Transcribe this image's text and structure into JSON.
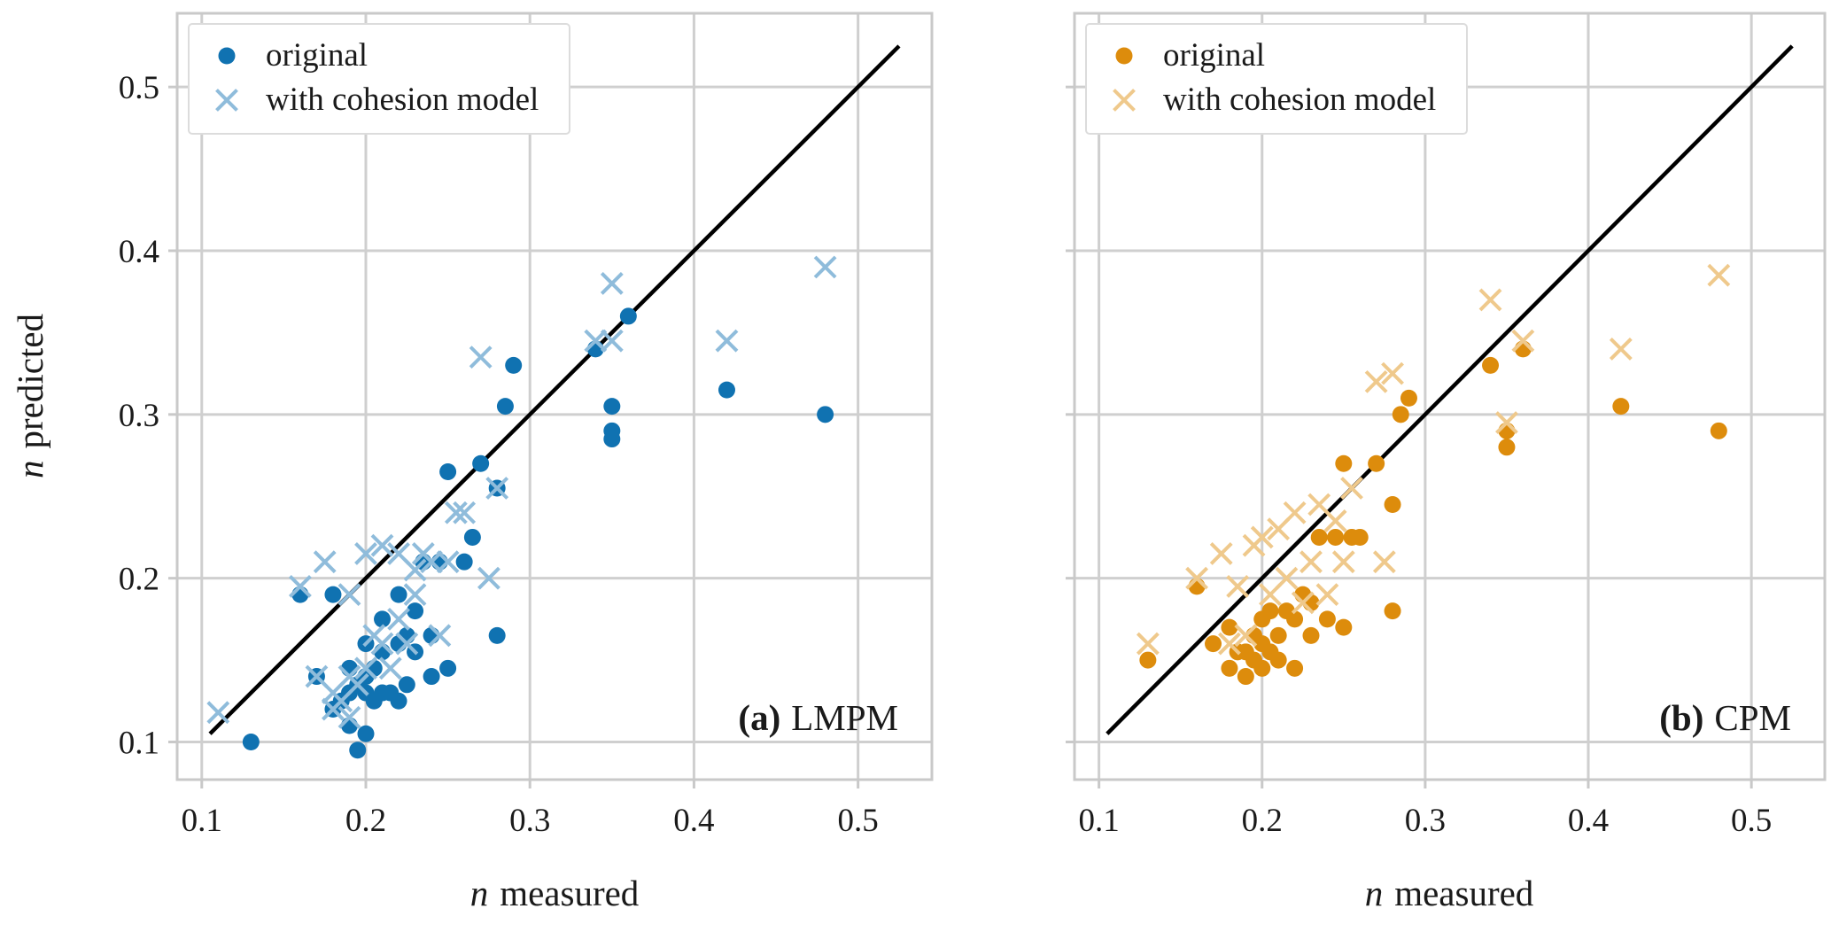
{
  "figure": {
    "background": "#ffffff",
    "text_color": "#1a1a1a",
    "grid_color": "#cfcfcf",
    "identity_line_color": "#000000"
  },
  "chart_data": [
    {
      "type": "scatter",
      "panel": "a",
      "panel_label": {
        "bold": "(a)",
        "name": "LMPM"
      },
      "xlabel": {
        "var": "n",
        "word": "measured"
      },
      "ylabel": {
        "var": "n",
        "word": "predicted"
      },
      "xlim": [
        0.085,
        0.545
      ],
      "ylim": [
        0.077,
        0.545
      ],
      "xticks": [
        0.1,
        0.2,
        0.3,
        0.4,
        0.5
      ],
      "yticks": [
        0.1,
        0.2,
        0.3,
        0.4,
        0.5
      ],
      "grid": true,
      "legend_position": "upper left",
      "identity_line": {
        "start": 0.105,
        "end": 0.525
      },
      "series": [
        {
          "name": "original",
          "marker": "circle",
          "color": "#1072b1",
          "points": [
            [
              0.13,
              0.1
            ],
            [
              0.16,
              0.19
            ],
            [
              0.17,
              0.14
            ],
            [
              0.18,
              0.12
            ],
            [
              0.18,
              0.19
            ],
            [
              0.185,
              0.125
            ],
            [
              0.19,
              0.11
            ],
            [
              0.19,
              0.13
            ],
            [
              0.19,
              0.145
            ],
            [
              0.195,
              0.095
            ],
            [
              0.195,
              0.135
            ],
            [
              0.2,
              0.105
            ],
            [
              0.2,
              0.13
            ],
            [
              0.2,
              0.14
            ],
            [
              0.2,
              0.16
            ],
            [
              0.205,
              0.125
            ],
            [
              0.205,
              0.145
            ],
            [
              0.21,
              0.13
            ],
            [
              0.21,
              0.155
            ],
            [
              0.21,
              0.175
            ],
            [
              0.215,
              0.13
            ],
            [
              0.22,
              0.125
            ],
            [
              0.22,
              0.16
            ],
            [
              0.22,
              0.19
            ],
            [
              0.225,
              0.135
            ],
            [
              0.225,
              0.165
            ],
            [
              0.23,
              0.155
            ],
            [
              0.23,
              0.18
            ],
            [
              0.235,
              0.21
            ],
            [
              0.24,
              0.14
            ],
            [
              0.24,
              0.165
            ],
            [
              0.245,
              0.21
            ],
            [
              0.25,
              0.145
            ],
            [
              0.25,
              0.265
            ],
            [
              0.26,
              0.21
            ],
            [
              0.265,
              0.225
            ],
            [
              0.27,
              0.27
            ],
            [
              0.28,
              0.165
            ],
            [
              0.28,
              0.255
            ],
            [
              0.285,
              0.305
            ],
            [
              0.29,
              0.33
            ],
            [
              0.34,
              0.34
            ],
            [
              0.35,
              0.285
            ],
            [
              0.35,
              0.29
            ],
            [
              0.35,
              0.305
            ],
            [
              0.36,
              0.36
            ],
            [
              0.42,
              0.315
            ],
            [
              0.48,
              0.3
            ]
          ]
        },
        {
          "name": "with cohesion model",
          "marker": "x",
          "color": "#8fbcdb",
          "points": [
            [
              0.11,
              0.118
            ],
            [
              0.16,
              0.195
            ],
            [
              0.17,
              0.14
            ],
            [
              0.175,
              0.21
            ],
            [
              0.18,
              0.12
            ],
            [
              0.18,
              0.13
            ],
            [
              0.185,
              0.125
            ],
            [
              0.19,
              0.115
            ],
            [
              0.19,
              0.14
            ],
            [
              0.19,
              0.19
            ],
            [
              0.195,
              0.135
            ],
            [
              0.2,
              0.145
            ],
            [
              0.2,
              0.215
            ],
            [
              0.205,
              0.165
            ],
            [
              0.21,
              0.16
            ],
            [
              0.21,
              0.22
            ],
            [
              0.215,
              0.145
            ],
            [
              0.22,
              0.175
            ],
            [
              0.22,
              0.215
            ],
            [
              0.225,
              0.16
            ],
            [
              0.23,
              0.19
            ],
            [
              0.23,
              0.205
            ],
            [
              0.235,
              0.215
            ],
            [
              0.24,
              0.21
            ],
            [
              0.245,
              0.165
            ],
            [
              0.25,
              0.21
            ],
            [
              0.255,
              0.24
            ],
            [
              0.26,
              0.24
            ],
            [
              0.27,
              0.335
            ],
            [
              0.275,
              0.2
            ],
            [
              0.28,
              0.255
            ],
            [
              0.34,
              0.345
            ],
            [
              0.35,
              0.345
            ],
            [
              0.35,
              0.38
            ],
            [
              0.42,
              0.345
            ],
            [
              0.48,
              0.39
            ]
          ]
        }
      ]
    },
    {
      "type": "scatter",
      "panel": "b",
      "panel_label": {
        "bold": "(b)",
        "name": "CPM"
      },
      "xlabel": {
        "var": "n",
        "word": "measured"
      },
      "ylabel": {
        "var": "n",
        "word": "predicted"
      },
      "xlim": [
        0.085,
        0.545
      ],
      "ylim": [
        0.077,
        0.545
      ],
      "xticks": [
        0.1,
        0.2,
        0.3,
        0.4,
        0.5
      ],
      "yticks": [
        0.1,
        0.2,
        0.3,
        0.4,
        0.5
      ],
      "grid": true,
      "legend_position": "upper left",
      "identity_line": {
        "start": 0.105,
        "end": 0.525
      },
      "series": [
        {
          "name": "original",
          "marker": "circle",
          "color": "#dd8c0c",
          "points": [
            [
              0.13,
              0.15
            ],
            [
              0.16,
              0.195
            ],
            [
              0.17,
              0.16
            ],
            [
              0.18,
              0.145
            ],
            [
              0.18,
              0.17
            ],
            [
              0.185,
              0.155
            ],
            [
              0.19,
              0.14
            ],
            [
              0.19,
              0.155
            ],
            [
              0.195,
              0.15
            ],
            [
              0.195,
              0.165
            ],
            [
              0.2,
              0.145
            ],
            [
              0.2,
              0.16
            ],
            [
              0.2,
              0.175
            ],
            [
              0.205,
              0.155
            ],
            [
              0.205,
              0.18
            ],
            [
              0.21,
              0.15
            ],
            [
              0.21,
              0.165
            ],
            [
              0.215,
              0.18
            ],
            [
              0.22,
              0.145
            ],
            [
              0.22,
              0.175
            ],
            [
              0.225,
              0.19
            ],
            [
              0.23,
              0.165
            ],
            [
              0.23,
              0.185
            ],
            [
              0.235,
              0.225
            ],
            [
              0.24,
              0.175
            ],
            [
              0.245,
              0.225
            ],
            [
              0.25,
              0.17
            ],
            [
              0.25,
              0.27
            ],
            [
              0.255,
              0.225
            ],
            [
              0.26,
              0.225
            ],
            [
              0.27,
              0.27
            ],
            [
              0.28,
              0.18
            ],
            [
              0.28,
              0.245
            ],
            [
              0.285,
              0.3
            ],
            [
              0.29,
              0.31
            ],
            [
              0.34,
              0.33
            ],
            [
              0.35,
              0.28
            ],
            [
              0.35,
              0.29
            ],
            [
              0.36,
              0.34
            ],
            [
              0.42,
              0.305
            ],
            [
              0.48,
              0.29
            ]
          ]
        },
        {
          "name": "with cohesion model",
          "marker": "x",
          "color": "#efc98c",
          "points": [
            [
              0.13,
              0.16
            ],
            [
              0.16,
              0.2
            ],
            [
              0.175,
              0.215
            ],
            [
              0.18,
              0.16
            ],
            [
              0.185,
              0.195
            ],
            [
              0.19,
              0.165
            ],
            [
              0.195,
              0.22
            ],
            [
              0.2,
              0.225
            ],
            [
              0.205,
              0.19
            ],
            [
              0.21,
              0.23
            ],
            [
              0.215,
              0.2
            ],
            [
              0.22,
              0.24
            ],
            [
              0.225,
              0.185
            ],
            [
              0.23,
              0.21
            ],
            [
              0.235,
              0.245
            ],
            [
              0.24,
              0.19
            ],
            [
              0.245,
              0.235
            ],
            [
              0.25,
              0.21
            ],
            [
              0.255,
              0.255
            ],
            [
              0.27,
              0.32
            ],
            [
              0.275,
              0.21
            ],
            [
              0.28,
              0.325
            ],
            [
              0.34,
              0.37
            ],
            [
              0.35,
              0.295
            ],
            [
              0.36,
              0.345
            ],
            [
              0.42,
              0.34
            ],
            [
              0.48,
              0.385
            ]
          ]
        }
      ]
    }
  ]
}
